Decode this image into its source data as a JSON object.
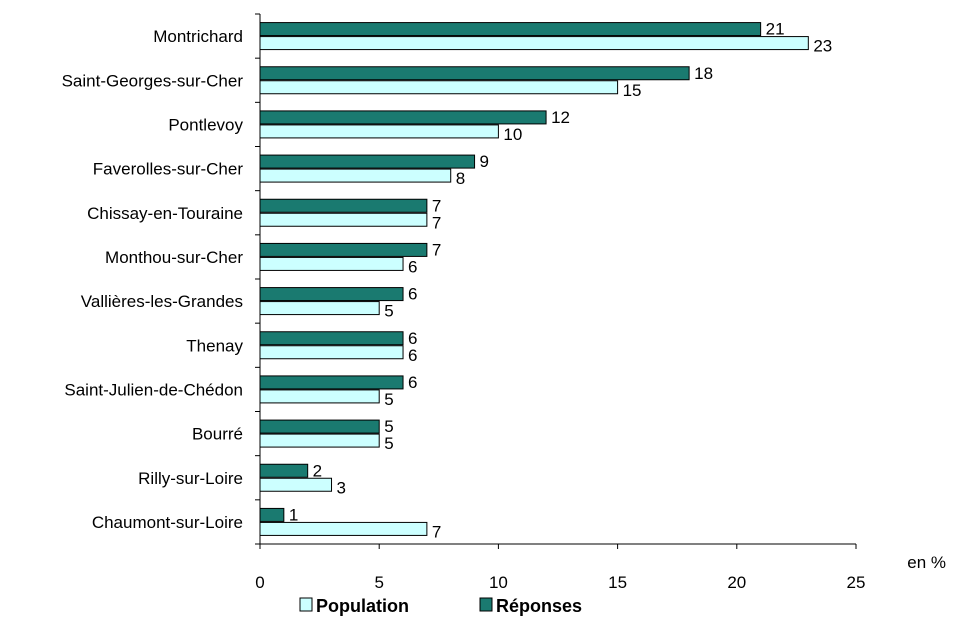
{
  "chart_data": {
    "type": "bar",
    "orientation": "horizontal",
    "categories": [
      "Montrichard",
      "Saint-Georges-sur-Cher",
      "Pontlevoy",
      "Faverolles-sur-Cher",
      "Chissay-en-Touraine",
      "Monthou-sur-Cher",
      "Vallières-les-Grandes",
      "Thenay",
      "Saint-Julien-de-Chédon",
      "Bourré",
      "Rilly-sur-Loire",
      "Chaumont-sur-Loire"
    ],
    "series": [
      {
        "name": "Réponses",
        "values": [
          21,
          18,
          12,
          9,
          7,
          7,
          6,
          6,
          6,
          5,
          2,
          1
        ],
        "color": "#1a7a70"
      },
      {
        "name": "Population",
        "values": [
          23,
          15,
          10,
          8,
          7,
          6,
          5,
          6,
          5,
          5,
          3,
          7
        ],
        "color": "#ccffff"
      }
    ],
    "xlim": [
      0,
      25
    ],
    "xticks": [
      0,
      5,
      10,
      15,
      20,
      25
    ],
    "xunit": "en %",
    "legend_position": "bottom",
    "legend_order": [
      "Population",
      "Réponses"
    ]
  }
}
